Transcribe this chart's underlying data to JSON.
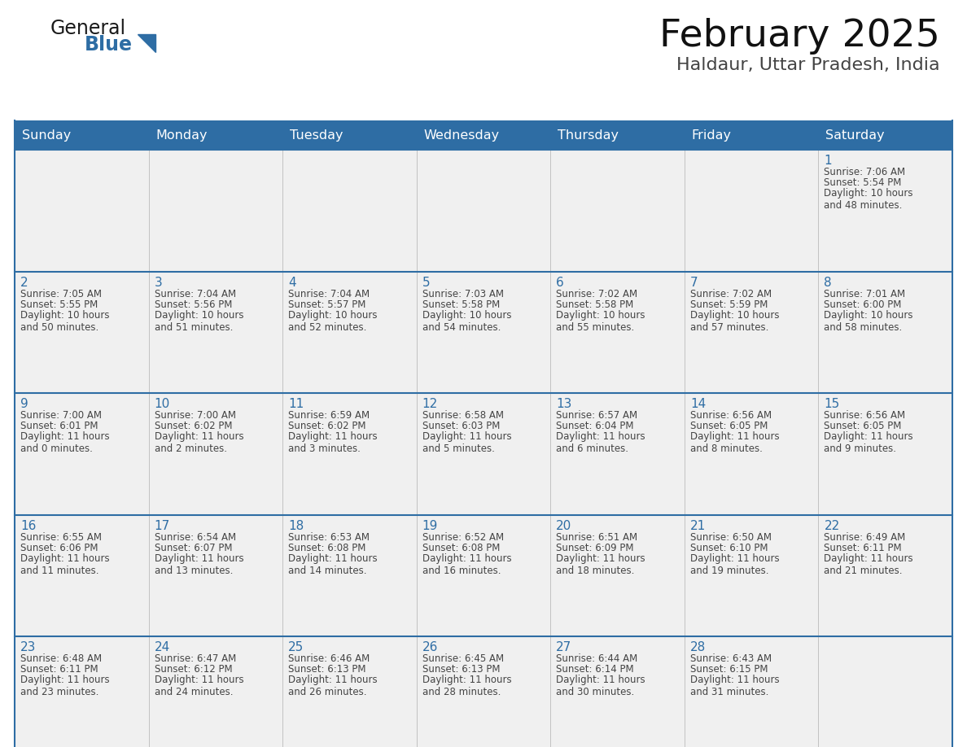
{
  "title": "February 2025",
  "subtitle": "Haldaur, Uttar Pradesh, India",
  "days_of_week": [
    "Sunday",
    "Monday",
    "Tuesday",
    "Wednesday",
    "Thursday",
    "Friday",
    "Saturday"
  ],
  "header_bg": "#2e6da4",
  "header_text": "#ffffff",
  "cell_bg": "#f0f0f0",
  "border_color": "#2e6da4",
  "day_number_color": "#2e6da4",
  "cell_text_color": "#444444",
  "title_color": "#111111",
  "subtitle_color": "#444444",
  "logo_general_color": "#1a1a1a",
  "logo_blue_color": "#2e6da4",
  "calendar_data": [
    [
      null,
      null,
      null,
      null,
      null,
      null,
      {
        "day": 1,
        "sunrise": "7:06 AM",
        "sunset": "5:54 PM",
        "daylight": "10 hours\nand 48 minutes."
      }
    ],
    [
      {
        "day": 2,
        "sunrise": "7:05 AM",
        "sunset": "5:55 PM",
        "daylight": "10 hours\nand 50 minutes."
      },
      {
        "day": 3,
        "sunrise": "7:04 AM",
        "sunset": "5:56 PM",
        "daylight": "10 hours\nand 51 minutes."
      },
      {
        "day": 4,
        "sunrise": "7:04 AM",
        "sunset": "5:57 PM",
        "daylight": "10 hours\nand 52 minutes."
      },
      {
        "day": 5,
        "sunrise": "7:03 AM",
        "sunset": "5:58 PM",
        "daylight": "10 hours\nand 54 minutes."
      },
      {
        "day": 6,
        "sunrise": "7:02 AM",
        "sunset": "5:58 PM",
        "daylight": "10 hours\nand 55 minutes."
      },
      {
        "day": 7,
        "sunrise": "7:02 AM",
        "sunset": "5:59 PM",
        "daylight": "10 hours\nand 57 minutes."
      },
      {
        "day": 8,
        "sunrise": "7:01 AM",
        "sunset": "6:00 PM",
        "daylight": "10 hours\nand 58 minutes."
      }
    ],
    [
      {
        "day": 9,
        "sunrise": "7:00 AM",
        "sunset": "6:01 PM",
        "daylight": "11 hours\nand 0 minutes."
      },
      {
        "day": 10,
        "sunrise": "7:00 AM",
        "sunset": "6:02 PM",
        "daylight": "11 hours\nand 2 minutes."
      },
      {
        "day": 11,
        "sunrise": "6:59 AM",
        "sunset": "6:02 PM",
        "daylight": "11 hours\nand 3 minutes."
      },
      {
        "day": 12,
        "sunrise": "6:58 AM",
        "sunset": "6:03 PM",
        "daylight": "11 hours\nand 5 minutes."
      },
      {
        "day": 13,
        "sunrise": "6:57 AM",
        "sunset": "6:04 PM",
        "daylight": "11 hours\nand 6 minutes."
      },
      {
        "day": 14,
        "sunrise": "6:56 AM",
        "sunset": "6:05 PM",
        "daylight": "11 hours\nand 8 minutes."
      },
      {
        "day": 15,
        "sunrise": "6:56 AM",
        "sunset": "6:05 PM",
        "daylight": "11 hours\nand 9 minutes."
      }
    ],
    [
      {
        "day": 16,
        "sunrise": "6:55 AM",
        "sunset": "6:06 PM",
        "daylight": "11 hours\nand 11 minutes."
      },
      {
        "day": 17,
        "sunrise": "6:54 AM",
        "sunset": "6:07 PM",
        "daylight": "11 hours\nand 13 minutes."
      },
      {
        "day": 18,
        "sunrise": "6:53 AM",
        "sunset": "6:08 PM",
        "daylight": "11 hours\nand 14 minutes."
      },
      {
        "day": 19,
        "sunrise": "6:52 AM",
        "sunset": "6:08 PM",
        "daylight": "11 hours\nand 16 minutes."
      },
      {
        "day": 20,
        "sunrise": "6:51 AM",
        "sunset": "6:09 PM",
        "daylight": "11 hours\nand 18 minutes."
      },
      {
        "day": 21,
        "sunrise": "6:50 AM",
        "sunset": "6:10 PM",
        "daylight": "11 hours\nand 19 minutes."
      },
      {
        "day": 22,
        "sunrise": "6:49 AM",
        "sunset": "6:11 PM",
        "daylight": "11 hours\nand 21 minutes."
      }
    ],
    [
      {
        "day": 23,
        "sunrise": "6:48 AM",
        "sunset": "6:11 PM",
        "daylight": "11 hours\nand 23 minutes."
      },
      {
        "day": 24,
        "sunrise": "6:47 AM",
        "sunset": "6:12 PM",
        "daylight": "11 hours\nand 24 minutes."
      },
      {
        "day": 25,
        "sunrise": "6:46 AM",
        "sunset": "6:13 PM",
        "daylight": "11 hours\nand 26 minutes."
      },
      {
        "day": 26,
        "sunrise": "6:45 AM",
        "sunset": "6:13 PM",
        "daylight": "11 hours\nand 28 minutes."
      },
      {
        "day": 27,
        "sunrise": "6:44 AM",
        "sunset": "6:14 PM",
        "daylight": "11 hours\nand 30 minutes."
      },
      {
        "day": 28,
        "sunrise": "6:43 AM",
        "sunset": "6:15 PM",
        "daylight": "11 hours\nand 31 minutes."
      },
      null
    ]
  ],
  "figsize": [
    11.88,
    9.18
  ],
  "dpi": 100
}
